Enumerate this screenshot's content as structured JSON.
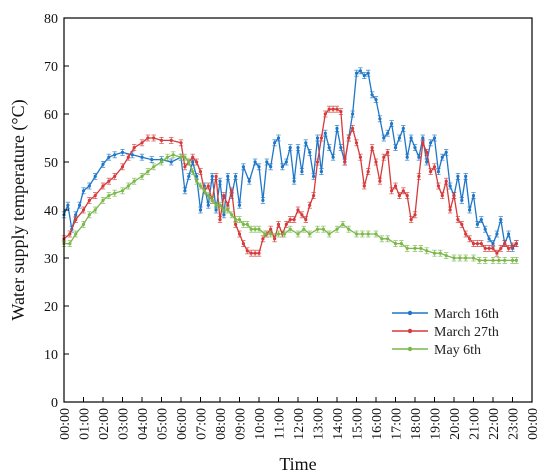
{
  "chart_data": {
    "type": "line",
    "title": "",
    "xlabel": "Time",
    "ylabel": "Water supply temperature (°C)",
    "ylim": [
      0,
      80
    ],
    "xlim": [
      0,
      24
    ],
    "yticks": [
      0,
      10,
      20,
      30,
      40,
      50,
      60,
      70,
      80
    ],
    "xtick_labels": [
      "00:00",
      "01:00",
      "02:00",
      "03:00",
      "04:00",
      "05:00",
      "06:00",
      "07:00",
      "08:00",
      "09:00",
      "10:00",
      "11:00",
      "12:00",
      "13:00",
      "14:00",
      "15:00",
      "16:00",
      "17:00",
      "18:00",
      "19:00",
      "20:00",
      "21:00",
      "22:00",
      "23:00",
      "00:00"
    ],
    "grid": false,
    "legend_position": "bottom-right",
    "series": [
      {
        "name": "March 16th",
        "color": "#1f77c8",
        "points": [
          [
            0,
            39
          ],
          [
            0.2,
            41
          ],
          [
            0.4,
            36
          ],
          [
            0.6,
            39
          ],
          [
            0.8,
            41
          ],
          [
            1,
            44
          ],
          [
            1.3,
            45
          ],
          [
            1.6,
            47
          ],
          [
            2,
            49.5
          ],
          [
            2.3,
            51
          ],
          [
            2.6,
            51.5
          ],
          [
            3,
            52
          ],
          [
            3.5,
            51.5
          ],
          [
            4,
            51
          ],
          [
            4.5,
            50.5
          ],
          [
            5,
            50.5
          ],
          [
            5.5,
            50
          ],
          [
            6,
            51
          ],
          [
            6.2,
            44
          ],
          [
            6.4,
            47
          ],
          [
            6.6,
            50
          ],
          [
            6.8,
            47
          ],
          [
            7,
            40
          ],
          [
            7.2,
            45
          ],
          [
            7.4,
            41
          ],
          [
            7.6,
            47
          ],
          [
            7.8,
            40
          ],
          [
            8,
            46
          ],
          [
            8.2,
            39
          ],
          [
            8.4,
            47
          ],
          [
            8.6,
            43
          ],
          [
            8.8,
            47
          ],
          [
            9,
            41
          ],
          [
            9.2,
            49
          ],
          [
            9.5,
            46
          ],
          [
            9.8,
            50
          ],
          [
            10,
            49
          ],
          [
            10.2,
            42
          ],
          [
            10.4,
            50
          ],
          [
            10.6,
            49
          ],
          [
            10.8,
            54
          ],
          [
            11,
            55
          ],
          [
            11.2,
            49
          ],
          [
            11.4,
            50
          ],
          [
            11.6,
            53
          ],
          [
            11.8,
            46
          ],
          [
            12,
            53
          ],
          [
            12.2,
            48
          ],
          [
            12.4,
            54
          ],
          [
            12.6,
            52
          ],
          [
            12.8,
            47
          ],
          [
            13,
            55
          ],
          [
            13.2,
            48
          ],
          [
            13.4,
            56
          ],
          [
            13.6,
            53
          ],
          [
            13.8,
            51
          ],
          [
            14,
            57
          ],
          [
            14.2,
            53
          ],
          [
            14.4,
            50
          ],
          [
            14.6,
            55
          ],
          [
            14.8,
            60
          ],
          [
            15,
            68.5
          ],
          [
            15.2,
            69
          ],
          [
            15.4,
            68
          ],
          [
            15.6,
            68.5
          ],
          [
            15.8,
            64
          ],
          [
            16,
            63
          ],
          [
            16.2,
            59
          ],
          [
            16.4,
            55
          ],
          [
            16.6,
            56
          ],
          [
            16.8,
            58
          ],
          [
            17,
            53
          ],
          [
            17.2,
            55
          ],
          [
            17.4,
            57
          ],
          [
            17.6,
            51
          ],
          [
            17.8,
            55
          ],
          [
            18,
            53
          ],
          [
            18.2,
            51
          ],
          [
            18.4,
            55
          ],
          [
            18.6,
            50
          ],
          [
            18.8,
            54
          ],
          [
            19,
            55
          ],
          [
            19.2,
            48
          ],
          [
            19.4,
            51
          ],
          [
            19.6,
            52
          ],
          [
            19.8,
            45
          ],
          [
            20,
            43
          ],
          [
            20.2,
            47
          ],
          [
            20.4,
            42
          ],
          [
            20.6,
            47
          ],
          [
            20.8,
            40
          ],
          [
            21,
            43
          ],
          [
            21.2,
            37
          ],
          [
            21.4,
            38
          ],
          [
            21.6,
            36
          ],
          [
            21.8,
            34
          ],
          [
            22,
            33
          ],
          [
            22.2,
            35
          ],
          [
            22.4,
            38
          ],
          [
            22.6,
            33
          ],
          [
            22.8,
            35
          ],
          [
            23,
            32
          ],
          [
            23.2,
            33
          ]
        ]
      },
      {
        "name": "March 27th",
        "color": "#d63a3a",
        "points": [
          [
            0,
            34
          ],
          [
            0.3,
            35
          ],
          [
            0.6,
            38
          ],
          [
            1,
            40
          ],
          [
            1.3,
            42
          ],
          [
            1.6,
            43
          ],
          [
            2,
            45
          ],
          [
            2.3,
            46
          ],
          [
            2.6,
            47
          ],
          [
            3,
            49
          ],
          [
            3.3,
            51
          ],
          [
            3.6,
            53
          ],
          [
            4,
            54
          ],
          [
            4.3,
            55
          ],
          [
            4.6,
            55
          ],
          [
            5,
            54.5
          ],
          [
            5.5,
            54.5
          ],
          [
            6,
            54
          ],
          [
            6.2,
            49
          ],
          [
            6.4,
            50
          ],
          [
            6.6,
            51
          ],
          [
            6.8,
            50
          ],
          [
            7,
            48
          ],
          [
            7.2,
            44
          ],
          [
            7.4,
            45
          ],
          [
            7.6,
            42
          ],
          [
            7.8,
            47
          ],
          [
            8,
            38
          ],
          [
            8.2,
            43
          ],
          [
            8.4,
            41
          ],
          [
            8.6,
            44
          ],
          [
            8.8,
            37
          ],
          [
            9,
            35
          ],
          [
            9.2,
            33
          ],
          [
            9.4,
            31.5
          ],
          [
            9.6,
            31
          ],
          [
            9.8,
            31
          ],
          [
            10,
            31
          ],
          [
            10.2,
            34
          ],
          [
            10.4,
            35
          ],
          [
            10.6,
            36
          ],
          [
            10.8,
            34
          ],
          [
            11,
            37
          ],
          [
            11.2,
            35
          ],
          [
            11.4,
            37
          ],
          [
            11.6,
            38
          ],
          [
            11.8,
            38
          ],
          [
            12,
            40
          ],
          [
            12.2,
            39
          ],
          [
            12.4,
            38
          ],
          [
            12.6,
            41
          ],
          [
            12.8,
            43
          ],
          [
            13,
            50
          ],
          [
            13.2,
            55
          ],
          [
            13.4,
            60
          ],
          [
            13.6,
            61
          ],
          [
            13.8,
            61
          ],
          [
            14,
            61
          ],
          [
            14.2,
            60.5
          ],
          [
            14.4,
            50
          ],
          [
            14.6,
            55
          ],
          [
            14.8,
            57
          ],
          [
            15,
            54
          ],
          [
            15.2,
            51
          ],
          [
            15.4,
            45
          ],
          [
            15.6,
            48
          ],
          [
            15.8,
            53
          ],
          [
            16,
            50
          ],
          [
            16.2,
            46
          ],
          [
            16.4,
            51
          ],
          [
            16.6,
            52
          ],
          [
            16.8,
            44
          ],
          [
            17,
            45
          ],
          [
            17.2,
            43
          ],
          [
            17.4,
            44
          ],
          [
            17.6,
            43
          ],
          [
            17.8,
            38
          ],
          [
            18,
            39
          ],
          [
            18.2,
            47
          ],
          [
            18.4,
            54
          ],
          [
            18.6,
            52
          ],
          [
            18.8,
            48
          ],
          [
            19,
            49
          ],
          [
            19.2,
            45
          ],
          [
            19.4,
            43
          ],
          [
            19.6,
            46
          ],
          [
            19.8,
            40
          ],
          [
            20,
            43
          ],
          [
            20.2,
            38
          ],
          [
            20.4,
            37
          ],
          [
            20.6,
            35
          ],
          [
            20.8,
            34
          ],
          [
            21,
            33
          ],
          [
            21.2,
            33
          ],
          [
            21.4,
            33
          ],
          [
            21.6,
            32
          ],
          [
            21.8,
            32
          ],
          [
            22,
            32
          ],
          [
            22.2,
            31
          ],
          [
            22.4,
            32
          ],
          [
            22.6,
            33
          ],
          [
            22.8,
            32
          ],
          [
            23,
            32.5
          ],
          [
            23.2,
            33
          ]
        ]
      },
      {
        "name": "May 6th",
        "color": "#7ab84a",
        "points": [
          [
            0,
            33
          ],
          [
            0.3,
            33
          ],
          [
            0.6,
            35
          ],
          [
            1,
            37
          ],
          [
            1.3,
            39
          ],
          [
            1.6,
            40
          ],
          [
            2,
            42
          ],
          [
            2.3,
            43
          ],
          [
            2.6,
            43.5
          ],
          [
            3,
            44
          ],
          [
            3.3,
            45
          ],
          [
            3.6,
            46
          ],
          [
            4,
            47
          ],
          [
            4.3,
            48
          ],
          [
            4.6,
            49
          ],
          [
            5,
            50
          ],
          [
            5.3,
            51
          ],
          [
            5.6,
            51.5
          ],
          [
            6,
            51
          ],
          [
            6.2,
            51
          ],
          [
            6.4,
            50
          ],
          [
            6.6,
            48
          ],
          [
            6.8,
            46
          ],
          [
            7,
            45
          ],
          [
            7.2,
            44
          ],
          [
            7.4,
            43
          ],
          [
            7.6,
            42
          ],
          [
            7.8,
            41
          ],
          [
            8,
            41
          ],
          [
            8.2,
            40
          ],
          [
            8.4,
            40
          ],
          [
            8.6,
            39
          ],
          [
            8.8,
            38
          ],
          [
            9,
            38
          ],
          [
            9.2,
            37
          ],
          [
            9.4,
            37
          ],
          [
            9.6,
            36
          ],
          [
            9.8,
            36
          ],
          [
            10,
            36
          ],
          [
            10.3,
            35
          ],
          [
            10.6,
            35
          ],
          [
            11,
            35
          ],
          [
            11.3,
            35
          ],
          [
            11.6,
            36
          ],
          [
            12,
            35
          ],
          [
            12.3,
            36
          ],
          [
            12.6,
            35
          ],
          [
            13,
            36
          ],
          [
            13.3,
            36
          ],
          [
            13.6,
            35
          ],
          [
            14,
            36
          ],
          [
            14.3,
            37
          ],
          [
            14.6,
            36
          ],
          [
            15,
            35
          ],
          [
            15.3,
            35
          ],
          [
            15.6,
            35
          ],
          [
            16,
            35
          ],
          [
            16.3,
            34
          ],
          [
            16.6,
            34
          ],
          [
            17,
            33
          ],
          [
            17.3,
            33
          ],
          [
            17.6,
            32
          ],
          [
            18,
            32
          ],
          [
            18.3,
            32
          ],
          [
            18.6,
            31.5
          ],
          [
            19,
            31
          ],
          [
            19.3,
            31
          ],
          [
            19.6,
            30.5
          ],
          [
            20,
            30
          ],
          [
            20.3,
            30
          ],
          [
            20.6,
            30
          ],
          [
            21,
            30
          ],
          [
            21.3,
            29.5
          ],
          [
            21.6,
            29.5
          ],
          [
            22,
            29.5
          ],
          [
            22.3,
            29.5
          ],
          [
            22.6,
            29.5
          ],
          [
            23,
            29.5
          ],
          [
            23.2,
            29.5
          ]
        ]
      }
    ]
  }
}
